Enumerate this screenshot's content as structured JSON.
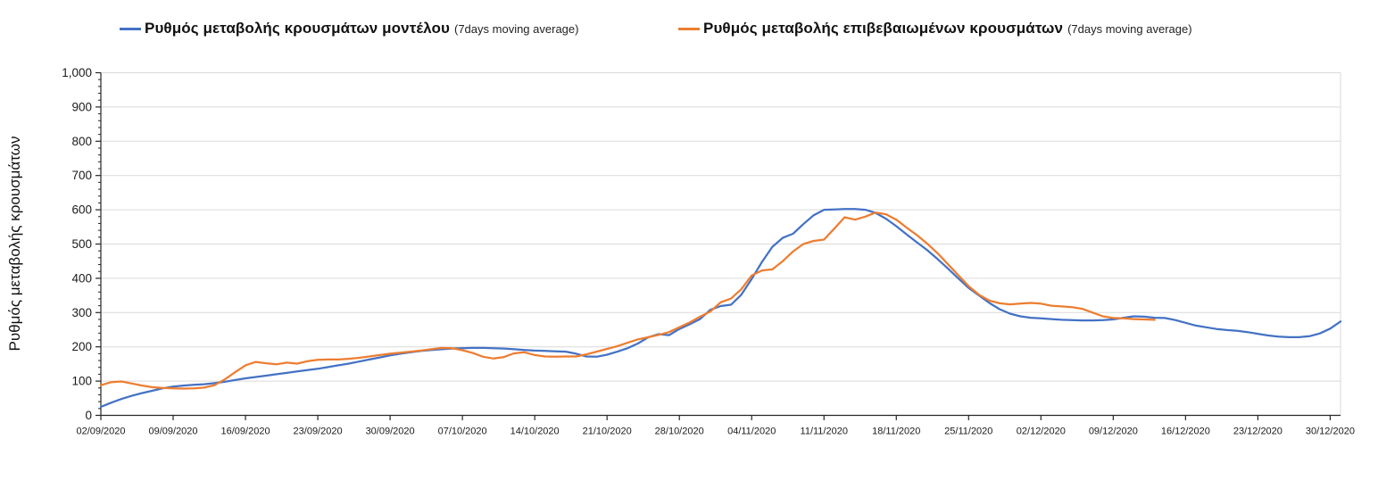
{
  "legend": {
    "items": [
      {
        "label": "Ρυθμός μεταβολής κρουσμάτων μοντέλου",
        "sublabel": "(7days moving average)",
        "color": "#4472C4"
      },
      {
        "label": "Ρυθμός μεταβολής επιβεβαιωμένων κρουσμάτων",
        "sublabel": "(7days moving average)",
        "color": "#ED7D31"
      }
    ]
  },
  "chart_data": {
    "type": "line",
    "title": "",
    "xlabel": "",
    "ylabel": "Ρυθμός μεταβολής κρουσμάτων",
    "ylim": [
      0,
      1000
    ],
    "y_tick_interval": 100,
    "y_minor_tick_interval": 20,
    "grid": "horizontal",
    "legend_position": "top",
    "y_tick_labels": [
      "0",
      "100",
      "200",
      "300",
      "400",
      "500",
      "600",
      "700",
      "800",
      "900",
      "1,000"
    ],
    "x_tick_labels": [
      "02/09/2020",
      "09/09/2020",
      "16/09/2020",
      "23/09/2020",
      "30/09/2020",
      "07/10/2020",
      "14/10/2020",
      "21/10/2020",
      "28/10/2020",
      "04/11/2020",
      "11/11/2020",
      "18/11/2020",
      "25/11/2020",
      "02/12/2020",
      "09/12/2020",
      "16/12/2020",
      "23/12/2020",
      "30/12/2020"
    ],
    "x_tick_days": [
      0,
      7,
      14,
      21,
      28,
      35,
      42,
      49,
      56,
      63,
      70,
      77,
      84,
      91,
      98,
      105,
      112,
      119
    ],
    "x_total_days": 120,
    "x_start_date": "02/09/2020",
    "series": [
      {
        "name": "Ρυθμός μεταβολής κρουσμάτων μοντέλου (7days moving average)",
        "color": "#4472C4",
        "start_day": 0,
        "values": [
          25,
          37,
          48,
          57,
          65,
          72,
          79,
          84,
          87,
          89,
          91,
          94,
          98,
          103,
          108,
          112,
          116,
          120,
          124,
          128,
          132,
          136,
          141,
          146,
          151,
          157,
          163,
          169,
          175,
          180,
          184,
          188,
          191,
          193,
          195,
          196,
          197,
          197,
          196,
          195,
          193,
          191,
          189,
          188,
          187,
          186,
          180,
          172,
          171,
          177,
          186,
          196,
          210,
          228,
          237,
          234,
          252,
          266,
          281,
          308,
          319,
          323,
          352,
          398,
          448,
          492,
          518,
          530,
          558,
          584,
          600,
          601,
          602,
          602,
          600,
          591,
          574,
          552,
          528,
          505,
          482,
          456,
          428,
          400,
          372,
          350,
          328,
          310,
          297,
          289,
          285,
          283,
          281,
          279,
          278,
          277,
          277,
          278,
          280,
          285,
          289,
          288,
          285,
          284,
          278,
          270,
          262,
          257,
          252,
          249,
          247,
          243,
          238,
          233,
          230,
          228,
          228,
          231,
          239,
          253,
          274
        ]
      },
      {
        "name": "Ρυθμός μεταβολής επιβεβαιωμένων κρουσμάτων (7days moving average)",
        "color": "#ED7D31",
        "start_day": 0,
        "values": [
          88,
          97,
          99,
          93,
          87,
          82,
          80,
          79,
          78,
          79,
          81,
          88,
          105,
          126,
          146,
          156,
          152,
          149,
          154,
          151,
          158,
          162,
          163,
          163,
          165,
          168,
          172,
          176,
          180,
          183,
          186,
          189,
          193,
          197,
          196,
          190,
          182,
          171,
          166,
          170,
          181,
          184,
          176,
          172,
          171,
          172,
          172,
          178,
          186,
          194,
          202,
          212,
          222,
          228,
          235,
          243,
          257,
          271,
          288,
          303,
          330,
          341,
          368,
          408,
          423,
          426,
          450,
          478,
          500,
          509,
          513,
          545,
          578,
          571,
          580,
          592,
          587,
          571,
          548,
          526,
          501,
          473,
          441,
          409,
          377,
          352,
          335,
          327,
          324,
          326,
          328,
          326,
          320,
          318,
          316,
          311,
          300,
          289,
          284,
          283,
          281,
          280,
          279
        ]
      }
    ],
    "colors": {
      "grid": "#D9D9D9",
      "axis": "#262626",
      "tick": "#262626",
      "series_model": "#4472C4",
      "series_confirmed": "#ED7D31",
      "background": "#FFFFFF"
    }
  }
}
